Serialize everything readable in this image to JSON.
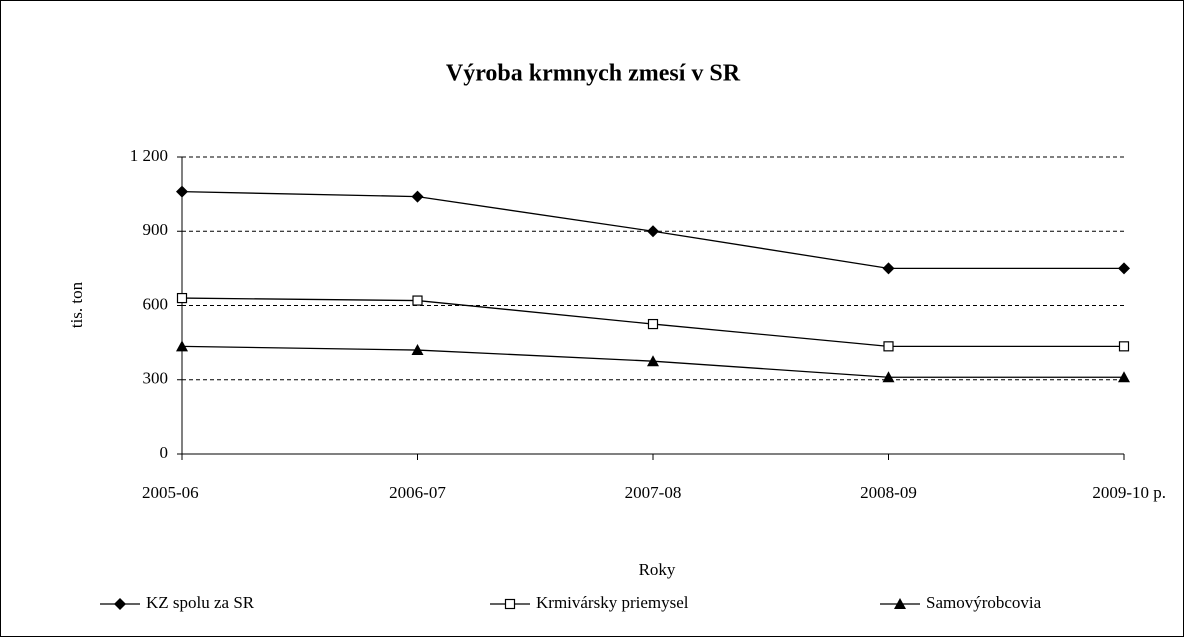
{
  "chart_data": {
    "type": "line",
    "title": "Výroba krmnych zmesí v SR",
    "x_label": "Roky",
    "y_label": "tis. ton",
    "categories": [
      "2005-06",
      "2006-07",
      "2007-08",
      "2008-09",
      "2009-10 p."
    ],
    "series": [
      {
        "name": "KZ spolu za SR",
        "color": "#000000",
        "marker": "diamond",
        "values": [
          1060,
          1040,
          900,
          750,
          750
        ]
      },
      {
        "name": "Krmivársky priemysel",
        "color": "#000000",
        "marker": "square",
        "values": [
          630,
          620,
          525,
          435,
          435
        ]
      },
      {
        "name": "Samovýrobcovia",
        "color": "#000000",
        "marker": "triangle",
        "values": [
          435,
          420,
          375,
          310,
          310
        ]
      }
    ],
    "ylim": [
      0,
      1200
    ],
    "yticks": [
      0,
      300,
      600,
      900,
      {
        "value": 1200,
        "label": "1 200"
      }
    ],
    "grid": true,
    "legend": "bottom"
  }
}
